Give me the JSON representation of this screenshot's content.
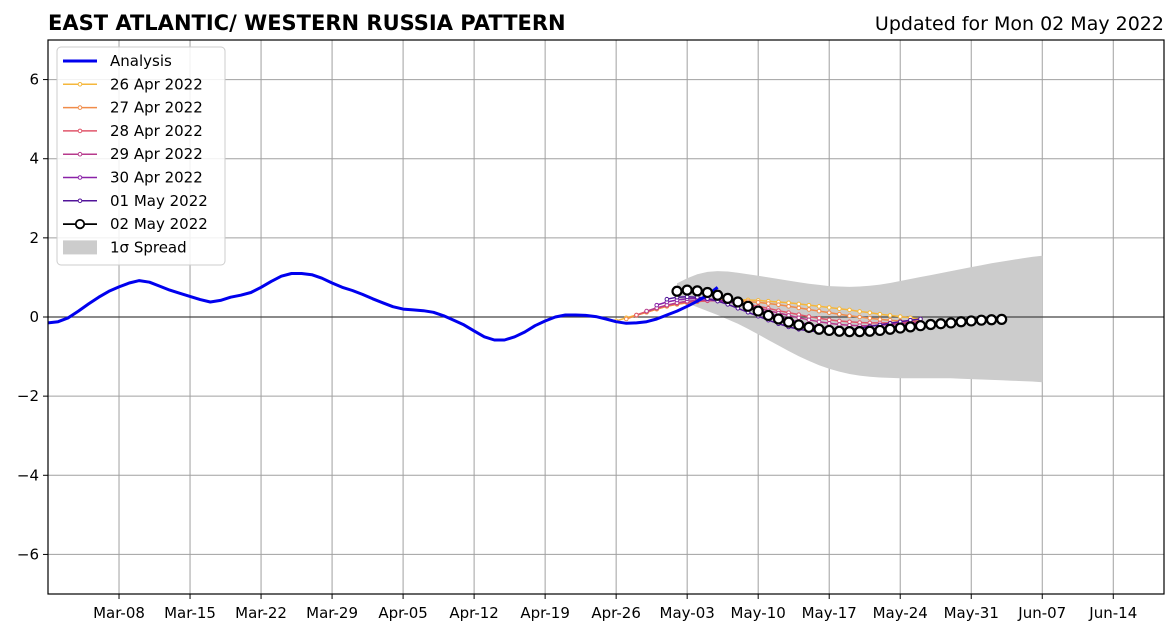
{
  "chart_data": {
    "type": "line",
    "title": "EAST ATLANTIC/ WESTERN RUSSIA PATTERN",
    "subtitle": "Updated for Mon 02 May 2022",
    "xlabel": "",
    "ylabel": "",
    "xlim": [
      "2022-03-01",
      "2022-06-19"
    ],
    "ylim": [
      -7,
      7
    ],
    "x_ticks": [
      "Mar-08",
      "Mar-15",
      "Mar-22",
      "Mar-29",
      "Apr-05",
      "Apr-12",
      "Apr-19",
      "Apr-26",
      "May-03",
      "May-10",
      "May-17",
      "May-24",
      "May-31",
      "Jun-07",
      "Jun-14"
    ],
    "y_ticks": [
      6,
      4,
      2,
      0,
      -2,
      -4,
      -6
    ],
    "y_tick_labels": [
      "6",
      "4",
      "2",
      "0",
      "−2",
      "−4",
      "−6"
    ],
    "grid": true,
    "legend_position": "top-left",
    "analysis": {
      "name": "Analysis",
      "color": "#0000ee",
      "start": "2022-03-01",
      "values": [
        -0.15,
        -0.12,
        -0.02,
        0.15,
        0.33,
        0.5,
        0.65,
        0.76,
        0.86,
        0.92,
        0.88,
        0.78,
        0.68,
        0.6,
        0.52,
        0.44,
        0.38,
        0.42,
        0.5,
        0.55,
        0.62,
        0.75,
        0.9,
        1.03,
        1.1,
        1.1,
        1.07,
        0.98,
        0.86,
        0.75,
        0.67,
        0.57,
        0.46,
        0.36,
        0.26,
        0.2,
        0.18,
        0.16,
        0.12,
        0.03,
        -0.08,
        -0.2,
        -0.35,
        -0.5,
        -0.58,
        -0.58,
        -0.5,
        -0.38,
        -0.22,
        -0.1,
        0.0,
        0.05,
        0.05,
        0.04,
        0.01,
        -0.05,
        -0.12,
        -0.16,
        -0.15,
        -0.12,
        -0.05,
        0.05,
        0.15,
        0.27,
        0.4,
        0.55,
        0.75
      ]
    },
    "forecasts": [
      {
        "name": "26 Apr 2022",
        "color": "#f5b73b",
        "start": "2022-04-26",
        "values": [
          -0.1,
          -0.02,
          0.05,
          0.12,
          0.2,
          0.27,
          0.32,
          0.36,
          0.39,
          0.41,
          0.43,
          0.44,
          0.44,
          0.43,
          0.42,
          0.4,
          0.38,
          0.36,
          0.33,
          0.3,
          0.27,
          0.24,
          0.21,
          0.18,
          0.14,
          0.11,
          0.07,
          0.04,
          0.01,
          -0.02,
          -0.05
        ]
      },
      {
        "name": "27 Apr 2022",
        "color": "#f08c4a",
        "start": "2022-04-27",
        "values": [
          -0.05,
          0.04,
          0.12,
          0.2,
          0.27,
          0.32,
          0.36,
          0.39,
          0.41,
          0.42,
          0.42,
          0.41,
          0.39,
          0.37,
          0.34,
          0.31,
          0.27,
          0.23,
          0.19,
          0.15,
          0.11,
          0.07,
          0.03,
          0.0,
          -0.03,
          -0.06,
          -0.08,
          -0.1,
          -0.1,
          -0.1
        ]
      },
      {
        "name": "28 Apr 2022",
        "color": "#e0566b",
        "start": "2022-04-28",
        "values": [
          0.05,
          0.14,
          0.22,
          0.29,
          0.34,
          0.38,
          0.4,
          0.41,
          0.41,
          0.39,
          0.36,
          0.32,
          0.27,
          0.22,
          0.16,
          0.11,
          0.06,
          0.01,
          -0.03,
          -0.07,
          -0.1,
          -0.12,
          -0.14,
          -0.15,
          -0.15,
          -0.15,
          -0.14,
          -0.13,
          -0.12
        ]
      },
      {
        "name": "29 Apr 2022",
        "color": "#b73a8c",
        "start": "2022-04-29",
        "values": [
          0.15,
          0.23,
          0.3,
          0.36,
          0.4,
          0.42,
          0.42,
          0.41,
          0.38,
          0.34,
          0.29,
          0.23,
          0.16,
          0.1,
          0.04,
          -0.02,
          -0.07,
          -0.12,
          -0.16,
          -0.19,
          -0.21,
          -0.22,
          -0.22,
          -0.21,
          -0.19,
          -0.17,
          -0.15,
          -0.12
        ]
      },
      {
        "name": "30 Apr 2022",
        "color": "#8a22a8",
        "start": "2022-04-30",
        "values": [
          0.3,
          0.38,
          0.43,
          0.46,
          0.47,
          0.46,
          0.43,
          0.39,
          0.33,
          0.26,
          0.18,
          0.1,
          0.02,
          -0.06,
          -0.13,
          -0.19,
          -0.24,
          -0.28,
          -0.3,
          -0.31,
          -0.31,
          -0.3,
          -0.28,
          -0.25,
          -0.22,
          -0.19,
          -0.15
        ]
      },
      {
        "name": "01 May 2022",
        "color": "#52149a",
        "start": "2022-05-01",
        "values": [
          0.45,
          0.5,
          0.51,
          0.5,
          0.46,
          0.4,
          0.32,
          0.22,
          0.12,
          0.02,
          -0.08,
          -0.17,
          -0.25,
          -0.31,
          -0.35,
          -0.37,
          -0.37,
          -0.35,
          -0.32,
          -0.28,
          -0.24,
          -0.2,
          -0.16,
          -0.12,
          -0.08,
          -0.05
        ]
      }
    ],
    "current": {
      "name": "02 May 2022",
      "color": "#000000",
      "start": "2022-05-02",
      "values": [
        0.65,
        0.68,
        0.66,
        0.62,
        0.55,
        0.47,
        0.38,
        0.27,
        0.15,
        0.04,
        -0.05,
        -0.13,
        -0.2,
        -0.26,
        -0.31,
        -0.34,
        -0.36,
        -0.37,
        -0.37,
        -0.36,
        -0.34,
        -0.31,
        -0.28,
        -0.25,
        -0.22,
        -0.19,
        -0.17,
        -0.15,
        -0.12,
        -0.1,
        -0.08,
        -0.07,
        -0.06
      ]
    },
    "spread": {
      "name": "1σ Spread",
      "color": "#cccccc",
      "start": "2022-05-02",
      "upper": [
        0.85,
        0.98,
        1.08,
        1.14,
        1.16,
        1.15,
        1.12,
        1.08,
        1.04,
        1.0,
        0.96,
        0.92,
        0.88,
        0.84,
        0.81,
        0.78,
        0.77,
        0.76,
        0.77,
        0.79,
        0.82,
        0.86,
        0.91,
        0.96,
        1.01,
        1.06,
        1.11,
        1.16,
        1.21,
        1.26,
        1.31,
        1.36,
        1.4,
        1.44,
        1.48,
        1.52,
        1.55
      ],
      "lower": [
        0.45,
        0.35,
        0.25,
        0.15,
        0.05,
        -0.06,
        -0.17,
        -0.3,
        -0.44,
        -0.58,
        -0.72,
        -0.86,
        -0.99,
        -1.11,
        -1.22,
        -1.31,
        -1.38,
        -1.44,
        -1.48,
        -1.51,
        -1.53,
        -1.54,
        -1.55,
        -1.55,
        -1.55,
        -1.55,
        -1.55,
        -1.55,
        -1.56,
        -1.57,
        -1.58,
        -1.59,
        -1.6,
        -1.61,
        -1.62,
        -1.63,
        -1.65
      ]
    }
  }
}
